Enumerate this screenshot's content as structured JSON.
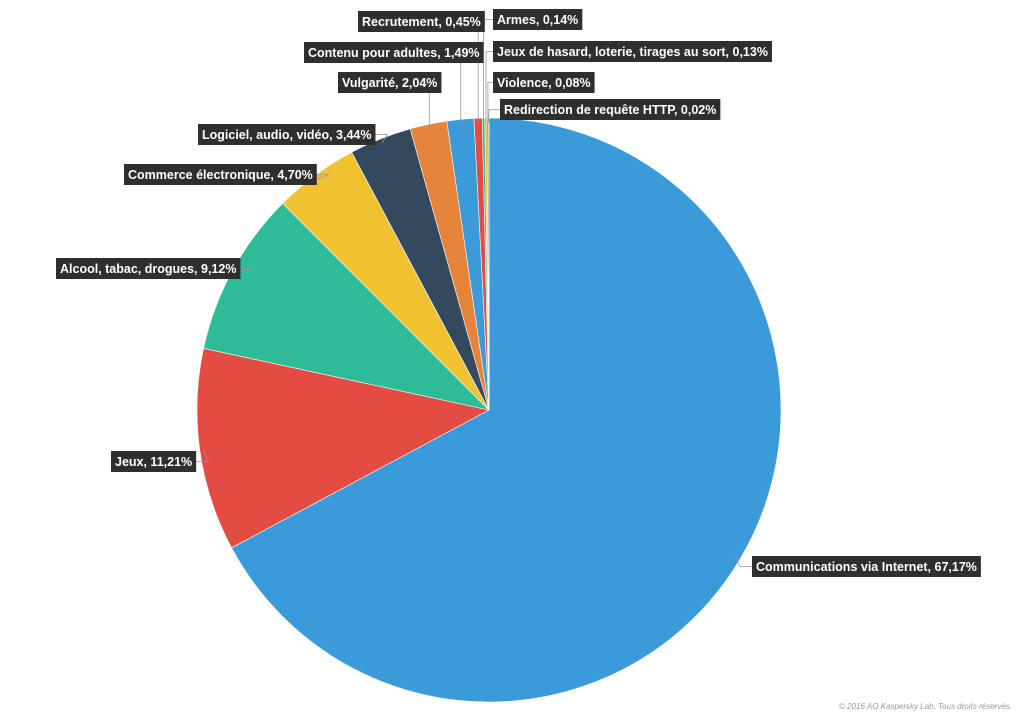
{
  "chart_data": {
    "type": "pie",
    "title": "",
    "slices": [
      {
        "label": "Communications via Internet, 67,17%",
        "value": 67.17,
        "color": "#3b9ad9"
      },
      {
        "label": "Jeux, 11,21%",
        "value": 11.21,
        "color": "#e34c42"
      },
      {
        "label": "Alcool, tabac, drogues, 9,12%",
        "value": 9.12,
        "color": "#2dbb98"
      },
      {
        "label": "Commerce électronique, 4,70%",
        "value": 4.7,
        "color": "#f0c232"
      },
      {
        "label": "Logiciel, audio, vidéo, 3,44%",
        "value": 3.44,
        "color": "#34495e"
      },
      {
        "label": "Vulgarité, 2,04%",
        "value": 2.04,
        "color": "#e5843a"
      },
      {
        "label": "Contenu pour adultes, 1,49%",
        "value": 1.49,
        "color": "#3b9ad9"
      },
      {
        "label": "Recrutement, 0,45%",
        "value": 0.45,
        "color": "#e34c42"
      },
      {
        "label": "Armes, 0,14%",
        "value": 0.14,
        "color": "#2dbb98"
      },
      {
        "label": "Jeux de hasard, loterie, tirages au sort, 0,13%",
        "value": 0.13,
        "color": "#f0c232"
      },
      {
        "label": "Violence, 0,08%",
        "value": 0.08,
        "color": "#34495e"
      },
      {
        "label": "Redirection de requête HTTP, 0,02%",
        "value": 0.02,
        "color": "#e5843a"
      }
    ],
    "legend": "none"
  },
  "footer": {
    "copyright": "© 2016 AO Kaspersky Lab. Tous droits réservés."
  }
}
